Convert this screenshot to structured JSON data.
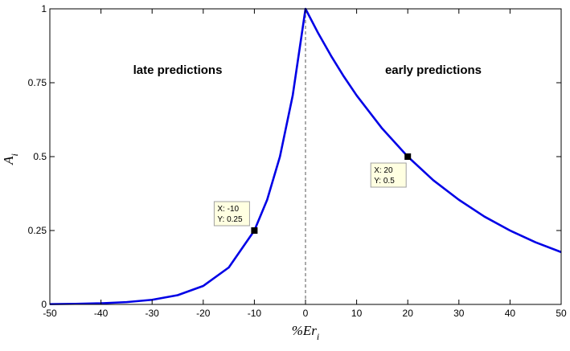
{
  "chart_data": {
    "type": "line",
    "title": "",
    "xlabel": "%Er",
    "xlabel_sub": "i",
    "ylabel": "A",
    "ylabel_sub": "i",
    "xlim": [
      -50,
      50
    ],
    "ylim": [
      0,
      1
    ],
    "xticks": [
      "-50",
      "-40",
      "-30",
      "-20",
      "-10",
      "0",
      "10",
      "20",
      "30",
      "40",
      "50"
    ],
    "yticks": [
      "0",
      "0.25",
      "0.5",
      "0.75",
      "1"
    ],
    "grid": false,
    "series": [
      {
        "color": "#0000e6",
        "x": [
          -50,
          -45,
          -40,
          -35,
          -30,
          -25,
          -20,
          -15,
          -10,
          -7.5,
          -5,
          -2.5,
          0,
          2.5,
          5,
          7.5,
          10,
          15,
          20,
          25,
          30,
          35,
          40,
          45,
          50
        ],
        "values": [
          0.001,
          0.002,
          0.0039,
          0.0078,
          0.0156,
          0.0313,
          0.0625,
          0.125,
          0.25,
          0.354,
          0.5,
          0.707,
          1,
          0.917,
          0.841,
          0.771,
          0.707,
          0.595,
          0.5,
          0.42,
          0.354,
          0.297,
          0.25,
          0.21,
          0.177
        ]
      }
    ],
    "reference_line": {
      "x": 0,
      "style": "dashed",
      "color": "#555555"
    },
    "annotations": [
      {
        "text": "late predictions",
        "x": -25,
        "y": 0.78
      },
      {
        "text": "early predictions",
        "x": 25,
        "y": 0.78
      }
    ],
    "datatips": [
      {
        "x": -10,
        "y": 0.25,
        "line1": "X: -10",
        "line2": "Y: 0.25",
        "anchor": "upper-left"
      },
      {
        "x": 20,
        "y": 0.5,
        "line1": "X: 20",
        "line2": "Y: 0.5",
        "anchor": "lower-left"
      }
    ]
  }
}
